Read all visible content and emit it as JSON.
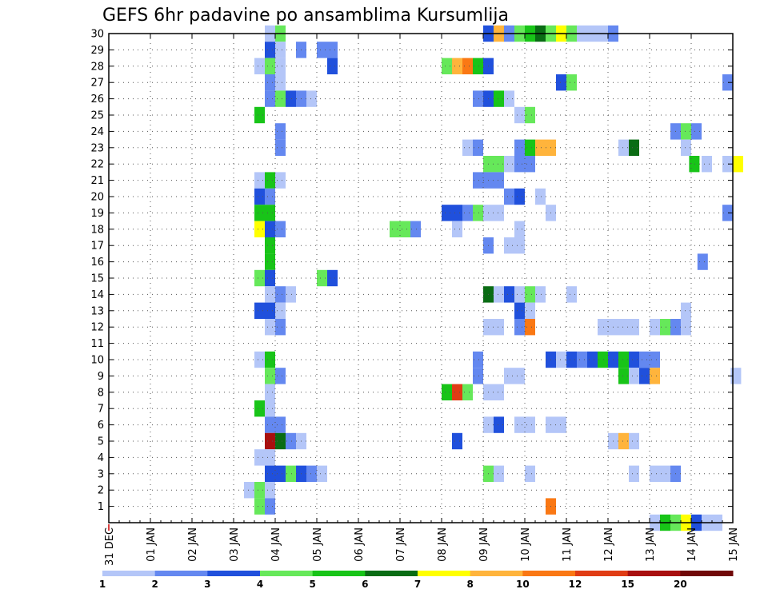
{
  "chart_data": {
    "type": "heatmap",
    "title": "GEFS 6hr padavine po ansamblima Kursumlija",
    "xlabel": "",
    "ylabel": "",
    "x_tick_labels": [
      "31 DEC",
      "01 JAN",
      "02 JAN",
      "03 JAN",
      "04 JAN",
      "05 JAN",
      "06 JAN",
      "07 JAN",
      "08 JAN",
      "09 JAN",
      "10 JAN",
      "11 JAN",
      "12 JAN",
      "13 JAN",
      "14 JAN",
      "15 JAN"
    ],
    "x_range_days": [
      0,
      15
    ],
    "y_tick_labels": [
      "1",
      "2",
      "3",
      "4",
      "5",
      "6",
      "7",
      "8",
      "9",
      "10",
      "11",
      "12",
      "13",
      "14",
      "15",
      "16",
      "17",
      "18",
      "19",
      "20",
      "21",
      "22",
      "23",
      "24",
      "25",
      "26",
      "27",
      "28",
      "29",
      "30"
    ],
    "y_range": [
      0,
      30
    ],
    "grid": "dotted",
    "colorbar": {
      "labels": [
        "1",
        "2",
        "3",
        "4",
        "5",
        "6",
        "7",
        "8",
        "10",
        "12",
        "15",
        "20"
      ],
      "colors": [
        "#b4c6f8",
        "#6488f0",
        "#2050dc",
        "#66e85a",
        "#18c418",
        "#0a6c14",
        "#ffff00",
        "#ffb43c",
        "#fa7814",
        "#e03c14",
        "#a80f0f",
        "#700808"
      ]
    },
    "cell_width_days": 0.25,
    "cells": [
      [
        30,
        3.75,
        1
      ],
      [
        30,
        4.0,
        4
      ],
      [
        30,
        9.0,
        3
      ],
      [
        30,
        9.25,
        8
      ],
      [
        30,
        9.5,
        2
      ],
      [
        30,
        9.75,
        4
      ],
      [
        30,
        10.0,
        5
      ],
      [
        30,
        10.25,
        6
      ],
      [
        30,
        10.5,
        4
      ],
      [
        30,
        10.75,
        7
      ],
      [
        30,
        11.0,
        4
      ],
      [
        30,
        11.25,
        1
      ],
      [
        30,
        11.5,
        1
      ],
      [
        30,
        11.75,
        1
      ],
      [
        30,
        12.0,
        2
      ],
      [
        29,
        3.75,
        3
      ],
      [
        29,
        4.0,
        1
      ],
      [
        29,
        4.5,
        2
      ],
      [
        29,
        5.0,
        2
      ],
      [
        29,
        5.25,
        2
      ],
      [
        28,
        3.5,
        1
      ],
      [
        28,
        3.75,
        4
      ],
      [
        28,
        4.0,
        1
      ],
      [
        28,
        5.25,
        3
      ],
      [
        28,
        8.0,
        4
      ],
      [
        28,
        8.25,
        8
      ],
      [
        28,
        8.5,
        9
      ],
      [
        28,
        8.75,
        5
      ],
      [
        28,
        9.0,
        3
      ],
      [
        27,
        3.75,
        2
      ],
      [
        27,
        4.0,
        1
      ],
      [
        27,
        10.75,
        3
      ],
      [
        27,
        11.0,
        4
      ],
      [
        27,
        14.75,
        2
      ],
      [
        26,
        3.75,
        2
      ],
      [
        26,
        4.0,
        4
      ],
      [
        26,
        4.25,
        3
      ],
      [
        26,
        4.5,
        2
      ],
      [
        26,
        4.75,
        1
      ],
      [
        26,
        8.75,
        2
      ],
      [
        26,
        9.0,
        3
      ],
      [
        26,
        9.25,
        5
      ],
      [
        26,
        9.5,
        1
      ],
      [
        25,
        3.5,
        5
      ],
      [
        25,
        9.75,
        1
      ],
      [
        25,
        10.0,
        4
      ],
      [
        24,
        4.0,
        2
      ],
      [
        24,
        13.5,
        2
      ],
      [
        24,
        13.75,
        4
      ],
      [
        24,
        14.0,
        2
      ],
      [
        23,
        4.0,
        2
      ],
      [
        23,
        8.5,
        1
      ],
      [
        23,
        8.75,
        2
      ],
      [
        23,
        9.75,
        2
      ],
      [
        23,
        10.0,
        5
      ],
      [
        23,
        10.25,
        8
      ],
      [
        23,
        10.5,
        8
      ],
      [
        23,
        12.25,
        1
      ],
      [
        23,
        12.5,
        6
      ],
      [
        23,
        13.75,
        1
      ],
      [
        22,
        9.0,
        4
      ],
      [
        22,
        9.25,
        4
      ],
      [
        22,
        9.5,
        1
      ],
      [
        22,
        9.75,
        2
      ],
      [
        22,
        10.0,
        2
      ],
      [
        22,
        13.95,
        5
      ],
      [
        22,
        14.25,
        1
      ],
      [
        22,
        14.75,
        1
      ],
      [
        22,
        15.0,
        7
      ],
      [
        21,
        3.5,
        1
      ],
      [
        21,
        3.75,
        5
      ],
      [
        21,
        4.0,
        1
      ],
      [
        21,
        8.75,
        2
      ],
      [
        21,
        9.0,
        2
      ],
      [
        21,
        9.25,
        2
      ],
      [
        20,
        3.5,
        3
      ],
      [
        20,
        3.75,
        2
      ],
      [
        20,
        9.5,
        2
      ],
      [
        20,
        9.75,
        3
      ],
      [
        20,
        10.25,
        1
      ],
      [
        19,
        3.5,
        5
      ],
      [
        19,
        3.75,
        5
      ],
      [
        19,
        8.0,
        3
      ],
      [
        19,
        8.25,
        3
      ],
      [
        19,
        8.5,
        2
      ],
      [
        19,
        8.75,
        4
      ],
      [
        19,
        9.0,
        1
      ],
      [
        19,
        9.25,
        1
      ],
      [
        19,
        10.5,
        1
      ],
      [
        19,
        14.75,
        2
      ],
      [
        18,
        3.5,
        7
      ],
      [
        18,
        3.75,
        3
      ],
      [
        18,
        4.0,
        2
      ],
      [
        18,
        6.75,
        4
      ],
      [
        18,
        7.0,
        4
      ],
      [
        18,
        7.25,
        2
      ],
      [
        18,
        8.25,
        1
      ],
      [
        18,
        9.75,
        1
      ],
      [
        17,
        3.75,
        5
      ],
      [
        17,
        9.0,
        2
      ],
      [
        17,
        9.5,
        1
      ],
      [
        17,
        9.75,
        1
      ],
      [
        16,
        3.75,
        5
      ],
      [
        16,
        14.15,
        2
      ],
      [
        15,
        3.5,
        4
      ],
      [
        15,
        3.75,
        3
      ],
      [
        15,
        5.0,
        4
      ],
      [
        15,
        5.25,
        3
      ],
      [
        14,
        3.75,
        1
      ],
      [
        14,
        4.0,
        2
      ],
      [
        14,
        4.25,
        1
      ],
      [
        14,
        9.0,
        6
      ],
      [
        14,
        9.25,
        1
      ],
      [
        14,
        9.5,
        3
      ],
      [
        14,
        9.75,
        1
      ],
      [
        14,
        10.0,
        4
      ],
      [
        14,
        10.25,
        1
      ],
      [
        14,
        11.0,
        1
      ],
      [
        13,
        3.5,
        3
      ],
      [
        13,
        3.75,
        3
      ],
      [
        13,
        4.0,
        1
      ],
      [
        13,
        9.75,
        3
      ],
      [
        13,
        10.0,
        1
      ],
      [
        13,
        13.75,
        1
      ],
      [
        12,
        3.75,
        1
      ],
      [
        12,
        4.0,
        2
      ],
      [
        12,
        9.0,
        1
      ],
      [
        12,
        9.25,
        1
      ],
      [
        12,
        9.75,
        2
      ],
      [
        12,
        10.0,
        9
      ],
      [
        12,
        11.75,
        1
      ],
      [
        12,
        12.0,
        1
      ],
      [
        12,
        12.25,
        1
      ],
      [
        12,
        12.5,
        1
      ],
      [
        12,
        13.0,
        1
      ],
      [
        12,
        13.25,
        4
      ],
      [
        12,
        13.5,
        2
      ],
      [
        12,
        13.75,
        1
      ],
      [
        10,
        3.5,
        1
      ],
      [
        10,
        3.75,
        5
      ],
      [
        10,
        8.75,
        2
      ],
      [
        10,
        10.5,
        3
      ],
      [
        10,
        10.75,
        1
      ],
      [
        10,
        11.0,
        3
      ],
      [
        10,
        11.25,
        2
      ],
      [
        10,
        11.5,
        3
      ],
      [
        10,
        11.75,
        5
      ],
      [
        10,
        12.0,
        3
      ],
      [
        10,
        12.25,
        5
      ],
      [
        10,
        12.5,
        3
      ],
      [
        10,
        12.75,
        2
      ],
      [
        10,
        13.0,
        2
      ],
      [
        9,
        3.75,
        4
      ],
      [
        9,
        4.0,
        2
      ],
      [
        9,
        8.75,
        2
      ],
      [
        9,
        9.5,
        1
      ],
      [
        9,
        9.75,
        1
      ],
      [
        9,
        12.25,
        5
      ],
      [
        9,
        12.5,
        1
      ],
      [
        9,
        12.75,
        3
      ],
      [
        9,
        13.0,
        8
      ],
      [
        9,
        14.95,
        1
      ],
      [
        8,
        3.75,
        1
      ],
      [
        8,
        8.0,
        5
      ],
      [
        8,
        8.25,
        10
      ],
      [
        8,
        8.5,
        4
      ],
      [
        8,
        9.0,
        1
      ],
      [
        8,
        9.25,
        1
      ],
      [
        7,
        3.5,
        5
      ],
      [
        7,
        3.75,
        1
      ],
      [
        6,
        3.75,
        2
      ],
      [
        6,
        4.0,
        2
      ],
      [
        6,
        9.0,
        1
      ],
      [
        6,
        9.25,
        3
      ],
      [
        6,
        9.75,
        1
      ],
      [
        6,
        10.0,
        1
      ],
      [
        6,
        10.5,
        1
      ],
      [
        6,
        10.75,
        1
      ],
      [
        5,
        3.75,
        11
      ],
      [
        5,
        4.0,
        6
      ],
      [
        5,
        4.25,
        2
      ],
      [
        5,
        4.5,
        1
      ],
      [
        5,
        8.25,
        3
      ],
      [
        5,
        12.0,
        1
      ],
      [
        5,
        12.25,
        8
      ],
      [
        5,
        12.5,
        1
      ],
      [
        4,
        3.5,
        1
      ],
      [
        4,
        3.75,
        1
      ],
      [
        3,
        3.75,
        3
      ],
      [
        3,
        4.0,
        3
      ],
      [
        3,
        4.25,
        4
      ],
      [
        3,
        4.5,
        3
      ],
      [
        3,
        4.75,
        2
      ],
      [
        3,
        5.0,
        1
      ],
      [
        3,
        9.0,
        4
      ],
      [
        3,
        9.25,
        1
      ],
      [
        3,
        10.0,
        1
      ],
      [
        3,
        12.5,
        1
      ],
      [
        3,
        13.0,
        1
      ],
      [
        3,
        13.25,
        1
      ],
      [
        3,
        13.5,
        2
      ],
      [
        2,
        3.25,
        1
      ],
      [
        2,
        3.5,
        4
      ],
      [
        2,
        3.75,
        1
      ],
      [
        1,
        3.5,
        4
      ],
      [
        1,
        3.75,
        2
      ],
      [
        1,
        10.5,
        9
      ],
      [
        0,
        13.0,
        1
      ],
      [
        0,
        13.25,
        5
      ],
      [
        0,
        13.5,
        4
      ],
      [
        0,
        13.75,
        7
      ],
      [
        0,
        14.0,
        3
      ],
      [
        0,
        14.25,
        1
      ],
      [
        0,
        14.5,
        1
      ]
    ]
  }
}
